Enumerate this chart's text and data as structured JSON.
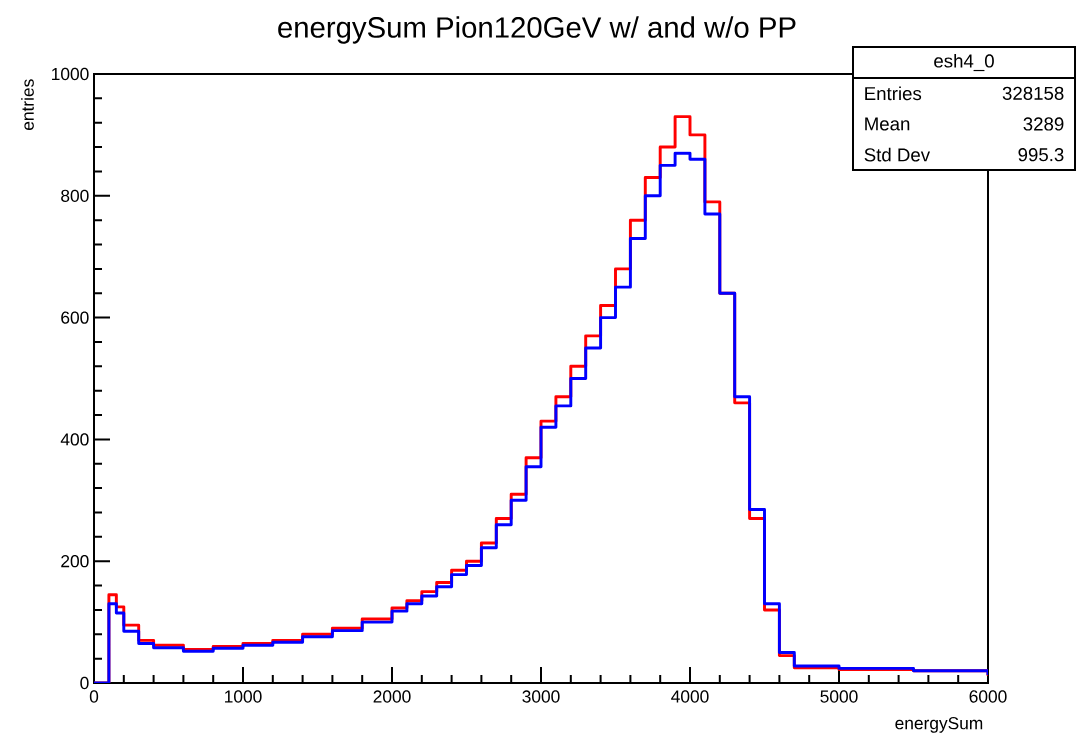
{
  "chart_data": {
    "type": "step",
    "title": "energySum Pion120GeV w/ and w/o PP",
    "xlabel": "energySum",
    "ylabel": "entries",
    "annotations": [
      "esh4_0",
      "Entries",
      "328158",
      "Mean",
      "3289",
      "Std Dev",
      "995.3"
    ],
    "series": [
      {
        "color": "#ff0000",
        "x": [
          0,
          60,
          100,
          150,
          200,
          300,
          400,
          600,
          800,
          1000,
          1200,
          1400,
          1600,
          1800,
          2000,
          2100,
          2200,
          2300,
          2400,
          2500,
          2600,
          2700,
          2800,
          2900,
          3000,
          3100,
          3200,
          3300,
          3400,
          3500,
          3600,
          3700,
          3800,
          3900,
          4000,
          4100,
          4200,
          4300,
          4400,
          4500,
          4600,
          4700,
          5000,
          5500,
          6000
        ],
        "values": [
          0,
          0,
          145,
          125,
          95,
          70,
          62,
          55,
          60,
          65,
          70,
          80,
          90,
          105,
          123,
          135,
          150,
          165,
          185,
          200,
          230,
          270,
          310,
          370,
          430,
          470,
          520,
          570,
          620,
          680,
          760,
          830,
          880,
          930,
          900,
          790,
          640,
          460,
          270,
          120,
          45,
          25,
          22,
          20,
          12
        ]
      },
      {
        "color": "#0000ff",
        "x": [
          0,
          60,
          100,
          150,
          200,
          300,
          400,
          600,
          800,
          1000,
          1200,
          1400,
          1600,
          1800,
          2000,
          2100,
          2200,
          2300,
          2400,
          2500,
          2600,
          2700,
          2800,
          2900,
          3000,
          3100,
          3200,
          3300,
          3400,
          3500,
          3600,
          3700,
          3800,
          3900,
          4000,
          4100,
          4200,
          4300,
          4400,
          4500,
          4600,
          4700,
          5000,
          5500,
          6000
        ],
        "values": [
          0,
          0,
          130,
          115,
          85,
          65,
          58,
          52,
          57,
          62,
          67,
          76,
          86,
          100,
          118,
          130,
          143,
          158,
          178,
          193,
          222,
          260,
          300,
          355,
          420,
          455,
          500,
          550,
          600,
          650,
          730,
          800,
          850,
          870,
          860,
          770,
          640,
          470,
          285,
          130,
          50,
          28,
          24,
          20,
          13
        ]
      }
    ],
    "xlim": [
      0,
      6000
    ],
    "ylim": [
      0,
      1000
    ],
    "xticks": [
      0,
      1000,
      2000,
      3000,
      4000,
      5000,
      6000
    ],
    "yticks": [
      0,
      200,
      400,
      600,
      800,
      1000
    ]
  }
}
